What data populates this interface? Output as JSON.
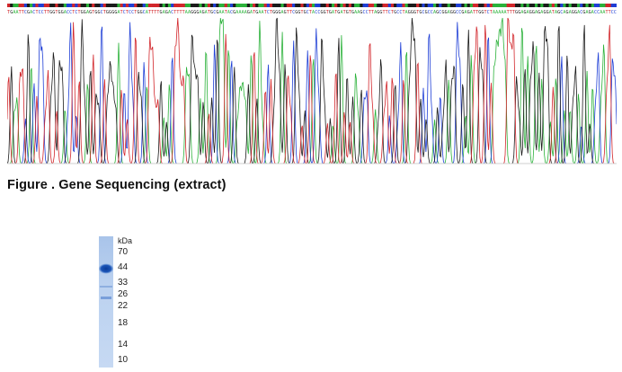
{
  "figure_caption": "Figure . Gene Sequencing (extract)",
  "chromatogram": {
    "base_colors": {
      "A": "#2bb23a",
      "C": "#1f3fd6",
      "G": "#1b1b1b",
      "T": "#d2262b"
    },
    "sequence": "TGAATTCGACTCCTTGGTGGACCTCTGGAGTGGCTGGGGATCTCCTGGCATTTTGAGACTTTTAAGGGAGATGCGAATACGAAAAGATGAATCTGGGAGTTCGGTGCTACCGGTGATGATGTGAAGCCTTAGGTTCTGCCTAGGGTGCGCCAGCGGAGGCCGAGATTGGTCTAAAAATTTGGAGAGGAGAGGATAGCAGAGGACGAGACCAATTCC"
  },
  "gel": {
    "unit_label": "kDa",
    "markers": [
      "70",
      "44",
      "33",
      "26",
      "22",
      "18",
      "14",
      "10"
    ]
  }
}
